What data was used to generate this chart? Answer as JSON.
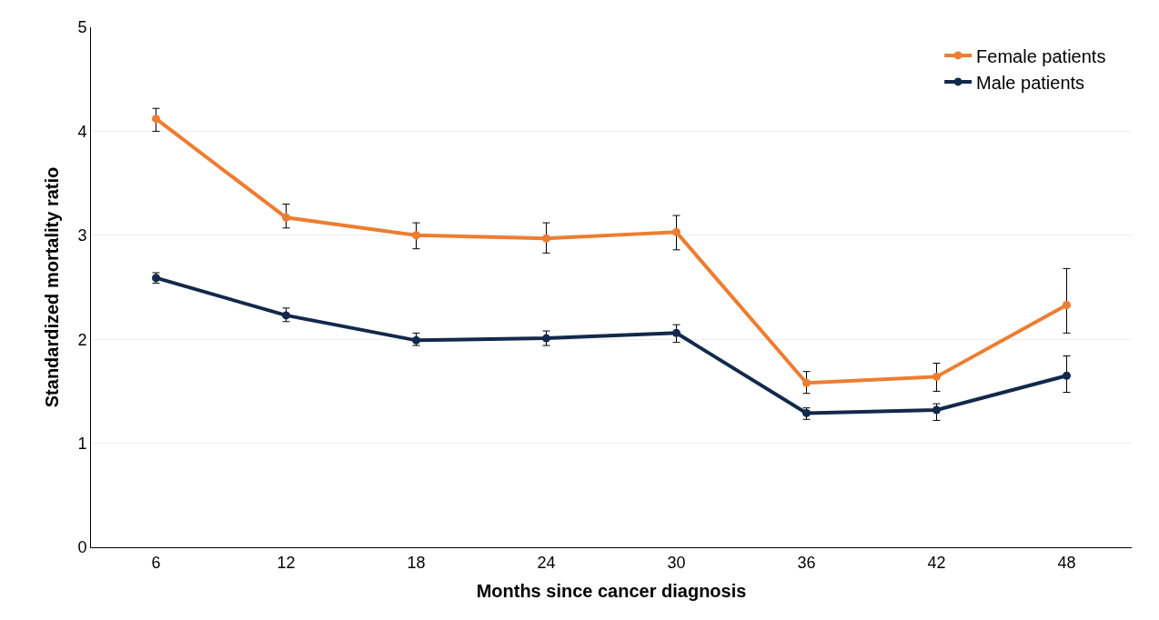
{
  "chart_data": {
    "type": "line",
    "xlabel": "Months since cancer diagnosis",
    "ylabel": "Standardized mortality ratio",
    "categories": [
      "6",
      "12",
      "18",
      "24",
      "30",
      "36",
      "42",
      "48"
    ],
    "series": [
      {
        "name": "Female patients",
        "color": "#ed7d31",
        "values": [
          4.12,
          3.17,
          3.0,
          2.97,
          3.03,
          1.58,
          1.64,
          2.33
        ],
        "errors": [
          [
            4.0,
            4.22
          ],
          [
            3.07,
            3.3
          ],
          [
            2.87,
            3.12
          ],
          [
            2.83,
            3.12
          ],
          [
            2.86,
            3.19
          ],
          [
            1.48,
            1.69
          ],
          [
            1.5,
            1.77
          ],
          [
            2.06,
            2.68
          ]
        ]
      },
      {
        "name": "Male patients",
        "color": "#13294b",
        "values": [
          2.59,
          2.23,
          1.99,
          2.01,
          2.06,
          1.29,
          1.32,
          1.65
        ],
        "errors": [
          [
            2.54,
            2.64
          ],
          [
            2.17,
            2.3
          ],
          [
            1.94,
            2.06
          ],
          [
            1.94,
            2.08
          ],
          [
            1.97,
            2.14
          ],
          [
            1.23,
            1.34
          ],
          [
            1.22,
            1.38
          ],
          [
            1.49,
            1.84
          ]
        ]
      }
    ],
    "ylim": [
      0,
      5
    ],
    "yticks": [
      0,
      1,
      2,
      3,
      4,
      5
    ],
    "grid": "y",
    "legend": "top right",
    "marker": "circle",
    "line_style": "solid"
  }
}
